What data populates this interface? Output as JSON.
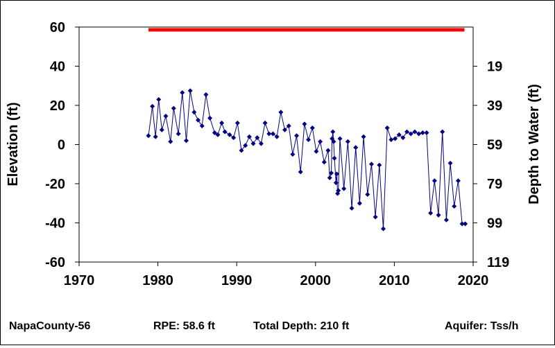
{
  "footer": {
    "well": "NapaCounty-56",
    "rpe": "RPE: 58.6 ft",
    "depth": "Total Depth: 210 ft",
    "aquifer": "Aquifer: Tss/h"
  },
  "chart_data": {
    "type": "line",
    "title": "",
    "xlabel": "",
    "ylabel": "Elevation (ft)",
    "y2label": "Depth to Water (ft)",
    "xlim": [
      1970,
      2020
    ],
    "ylim": [
      -60,
      60
    ],
    "x_ticks": [
      1970,
      1980,
      1990,
      2000,
      2010,
      2020
    ],
    "y_ticks": [
      60,
      40,
      20,
      0,
      -20,
      -40,
      -60
    ],
    "y2_ticks": [
      "19",
      "39",
      "59",
      "79",
      "99",
      "119"
    ],
    "y2_tick_values": [
      40,
      20,
      0,
      -20,
      -40,
      -60
    ],
    "grid": false,
    "reference_line": {
      "y": 58.6,
      "x_range": [
        1978.8,
        2018.9
      ],
      "color": "#ff0000"
    },
    "series": [
      {
        "color": "#000080",
        "marker": "diamond",
        "x": [
          1978.8,
          1979.3,
          1979.7,
          1980.1,
          1980.5,
          1981.0,
          1981.6,
          1982.0,
          1982.6,
          1983.1,
          1983.6,
          1984.1,
          1984.6,
          1985.1,
          1985.6,
          1986.1,
          1986.6,
          1987.2,
          1987.6,
          1988.1,
          1988.5,
          1989.1,
          1989.6,
          1990.1,
          1990.6,
          1991.1,
          1991.6,
          1992.1,
          1992.6,
          1993.1,
          1993.6,
          1994.1,
          1994.6,
          1995.1,
          1995.6,
          1996.1,
          1996.6,
          1997.1,
          1997.6,
          1998.1,
          1998.6,
          1999.1,
          1999.6,
          2000.1,
          2000.6,
          2001.1,
          2001.6,
          2001.8,
          2002.0,
          2002.1,
          2002.2,
          2002.3,
          2002.4,
          2002.6,
          2002.7,
          2002.8,
          2002.9,
          2003.1,
          2003.6,
          2004.1,
          2004.6,
          2005.1,
          2005.6,
          2006.1,
          2006.6,
          2007.1,
          2007.6,
          2008.1,
          2008.6,
          2009.1,
          2009.6,
          2010.1,
          2010.6,
          2011.1,
          2011.6,
          2012.1,
          2012.6,
          2013.1,
          2013.6,
          2014.1,
          2014.6,
          2015.1,
          2015.6,
          2016.1,
          2016.6,
          2017.1,
          2017.6,
          2018.1,
          2018.6,
          2019.0
        ],
        "y": [
          4.5,
          19.5,
          4,
          23,
          7.5,
          14.5,
          1.5,
          18.5,
          5.5,
          26.5,
          2,
          27.5,
          16.5,
          12.5,
          9.5,
          25.5,
          13.5,
          6,
          5,
          11,
          6.5,
          5,
          3.5,
          11,
          -3,
          -0.5,
          4,
          0.5,
          3.5,
          0.5,
          11,
          5.5,
          5.5,
          4,
          16.5,
          7.5,
          9.5,
          -5,
          4.5,
          -14,
          10.5,
          2.5,
          8.5,
          -3.5,
          1.5,
          -9,
          -3,
          -17,
          -14.5,
          3,
          6.5,
          1.5,
          -7,
          -19.5,
          -15,
          -25,
          -23.5,
          3,
          -22.5,
          1.5,
          -32.5,
          -1.5,
          -30,
          4,
          -25.5,
          -10,
          -37,
          -10.5,
          -43,
          8.5,
          2.5,
          3,
          5,
          3.5,
          6.5,
          5.5,
          6.5,
          5.5,
          6,
          6,
          -35,
          -18.5,
          -36,
          6.5,
          -38.5,
          -9.5,
          -31.5,
          -18.5,
          -40.5,
          -40.5
        ]
      }
    ]
  }
}
